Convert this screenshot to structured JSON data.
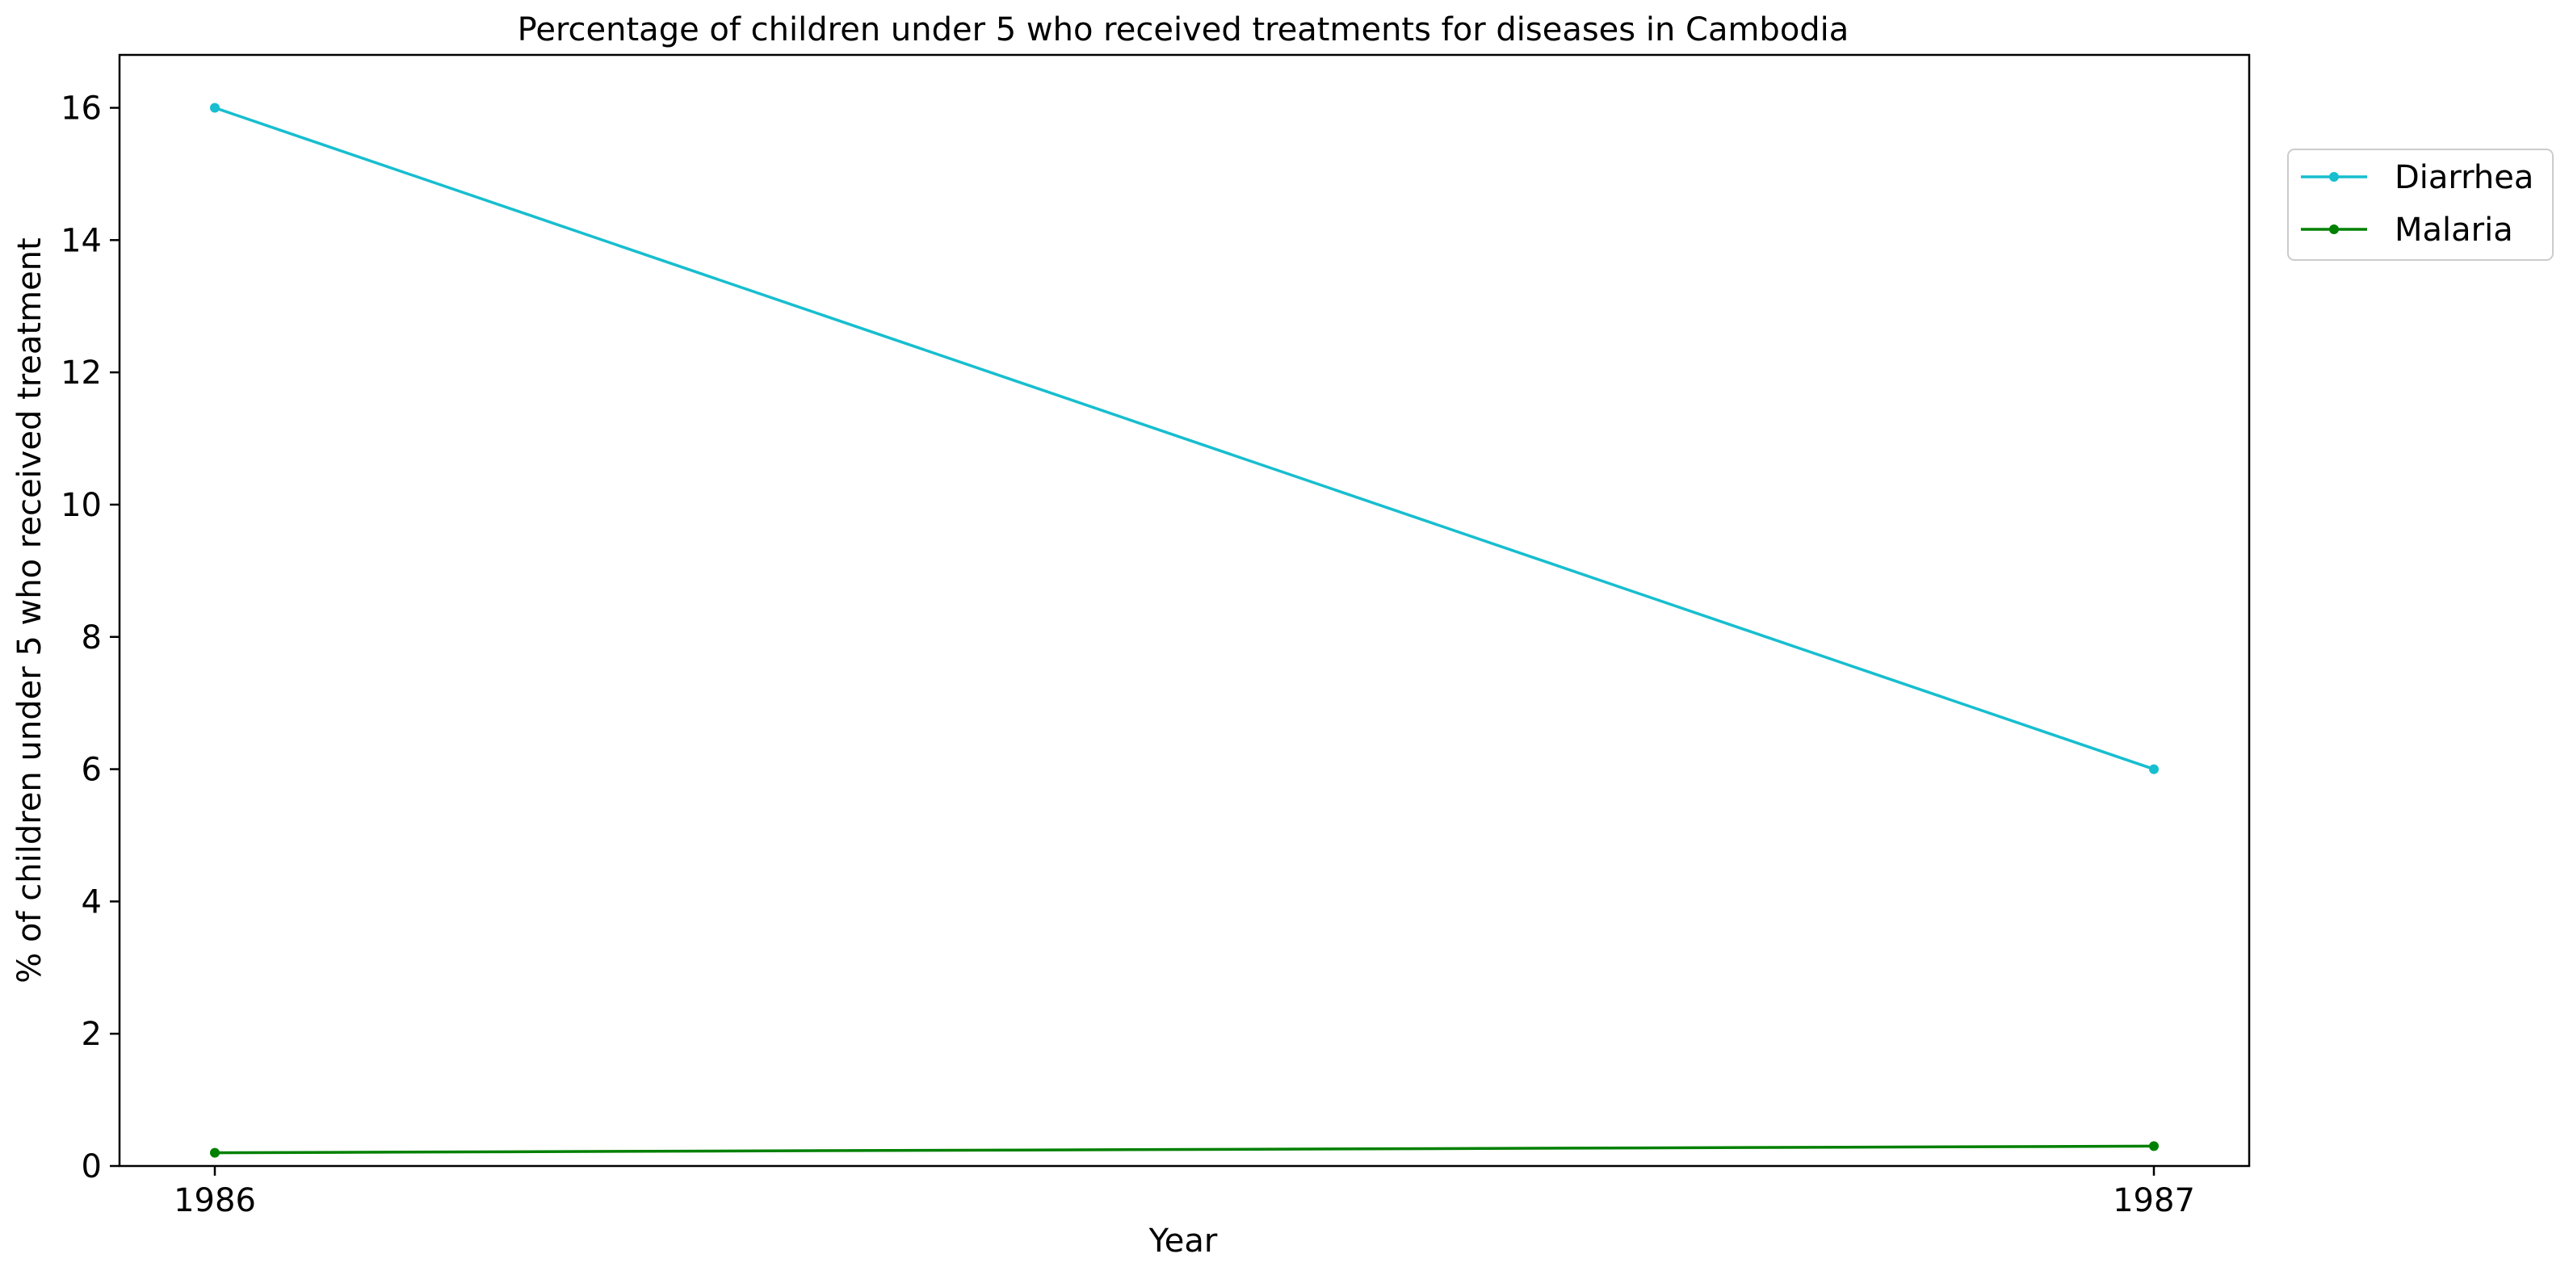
{
  "chart_data": {
    "type": "line",
    "title": "Percentage of children under 5 who received treatments for diseases in Cambodia",
    "xlabel": "Year",
    "ylabel": "% of children under 5 who received treatment",
    "x": [
      "1986",
      "1987"
    ],
    "ylim": [
      0,
      16.8
    ],
    "yticks": [
      "0",
      "2",
      "4",
      "6",
      "8",
      "10",
      "12",
      "14",
      "16"
    ],
    "grid": false,
    "legend_position": "upper-right-outside",
    "series": [
      {
        "name": "Diarrhea",
        "values": [
          16.0,
          6.0
        ],
        "color": "#17becf"
      },
      {
        "name": "Malaria",
        "values": [
          0.2,
          0.3
        ],
        "color": "#008000"
      }
    ]
  }
}
